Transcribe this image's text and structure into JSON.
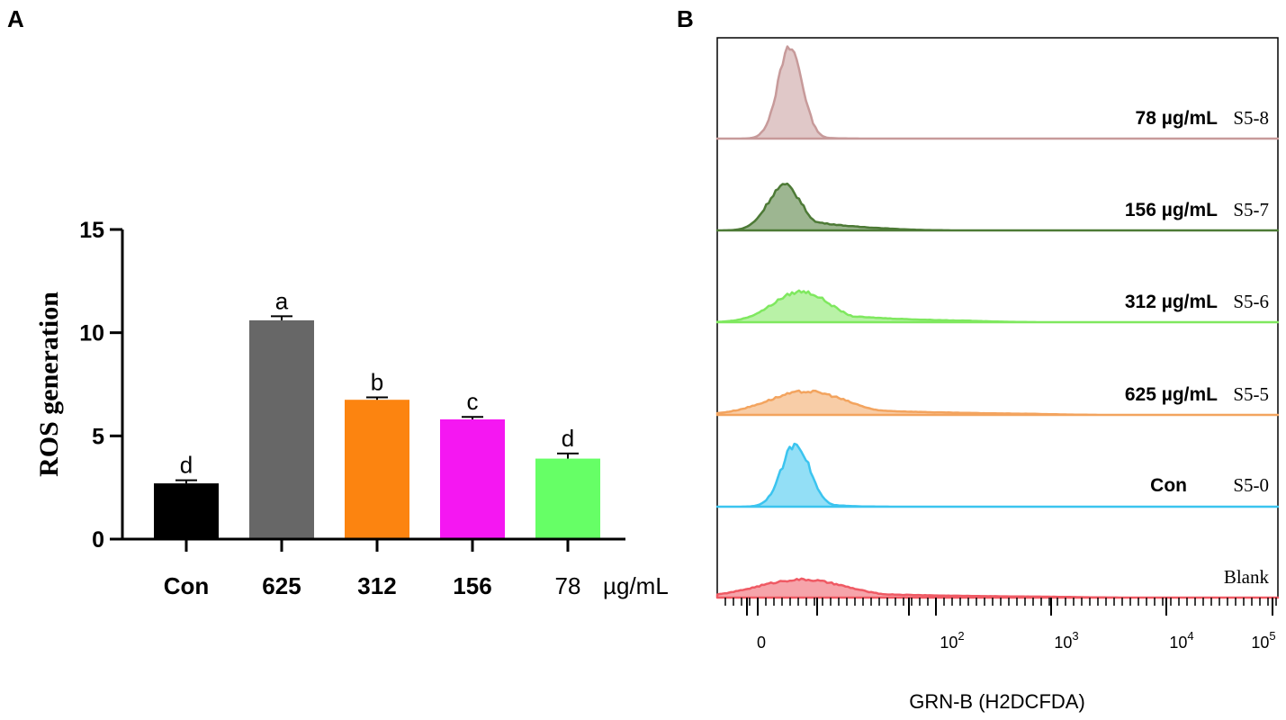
{
  "panels": {
    "a_label": "A",
    "b_label": "B"
  },
  "chart_data": [
    {
      "type": "bar",
      "panel": "A",
      "title": "",
      "ylabel": "ROS generation",
      "xlabel": "",
      "unit_label": "µg/mL",
      "ylim": [
        0,
        15
      ],
      "yticks": [
        0,
        5,
        10,
        15
      ],
      "categories": [
        "Con",
        "625",
        "312",
        "156",
        "78"
      ],
      "values": [
        2.7,
        10.6,
        6.75,
        5.8,
        3.9
      ],
      "errors": [
        0.15,
        0.2,
        0.12,
        0.12,
        0.25
      ],
      "significance": [
        "d",
        "a",
        "b",
        "c",
        "d"
      ],
      "colors": [
        "#000000",
        "#676767",
        "#fc8410",
        "#f517f2",
        "#66ff66"
      ],
      "category_bold": [
        true,
        true,
        true,
        true,
        false
      ]
    },
    {
      "type": "area",
      "panel": "B",
      "xlabel": "GRN-B (H2DCFDA)",
      "xtick_labels": [
        {
          "base": "0",
          "exp": ""
        },
        {
          "base": "10",
          "exp": "2"
        },
        {
          "base": "10",
          "exp": "3"
        },
        {
          "base": "10",
          "exp": "4"
        },
        {
          "base": "10",
          "exp": "5"
        }
      ],
      "series": [
        {
          "dose": "78 µg/mL",
          "name": "S5-8",
          "color": "#c79a9a",
          "peak": 0.13,
          "spread": 0.022,
          "tail": 0.05
        },
        {
          "dose": "156 µg/mL",
          "name": "S5-7",
          "color": "#4d7a36",
          "peak": 0.12,
          "spread": 0.03,
          "tail": 0.18
        },
        {
          "dose": "312 µg/mL",
          "name": "S5-6",
          "color": "#7fe85f",
          "peak": 0.15,
          "spread": 0.05,
          "tail": 0.3
        },
        {
          "dose": "625 µg/mL",
          "name": "S5-5",
          "color": "#f3a45f",
          "peak": 0.16,
          "spread": 0.07,
          "tail": 0.4
        },
        {
          "dose": "Con",
          "name": "S5-0",
          "color": "#3bc4ef",
          "peak": 0.14,
          "spread": 0.025,
          "tail": 0.08
        },
        {
          "dose": "",
          "name": "Blank",
          "color": "#ef5a64",
          "peak": 0.15,
          "spread": 0.08,
          "tail": 0.45
        }
      ]
    }
  ]
}
